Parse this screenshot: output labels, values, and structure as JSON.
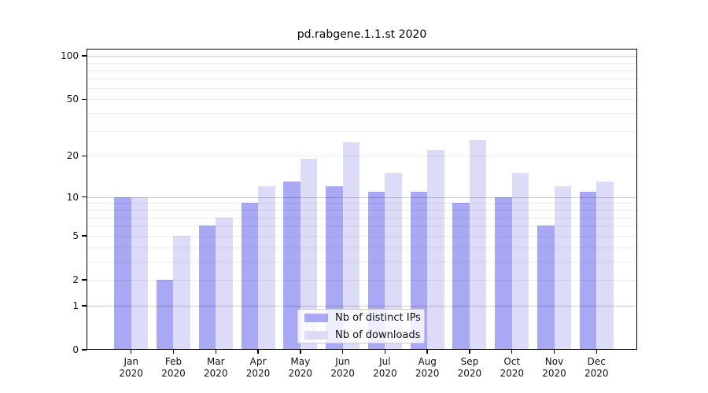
{
  "chart_data": {
    "type": "bar",
    "title": "pd.rabgene.1.1.st 2020",
    "scale": "log1p",
    "grid": true,
    "legend_position": "lower-center",
    "xlabel": "",
    "ylabel": "",
    "ylim": [
      0,
      112
    ],
    "y_ticks": [
      0,
      1,
      2,
      5,
      10,
      20,
      50,
      100
    ],
    "minor_gridlines": [
      2,
      3,
      4,
      5,
      6,
      7,
      8,
      9,
      20,
      30,
      40,
      50,
      60,
      70,
      80,
      90
    ],
    "major_gridlines": [
      1,
      10,
      100
    ],
    "categories": [
      "Jan 2020",
      "Feb 2020",
      "Mar 2020",
      "Apr 2020",
      "May 2020",
      "Jun 2020",
      "Jul 2020",
      "Aug 2020",
      "Sep 2020",
      "Oct 2020",
      "Nov 2020",
      "Dec 2020"
    ],
    "series": [
      {
        "name": "Nb of distinct IPs",
        "color": "#a8a8f5",
        "values": [
          10,
          2,
          6,
          9,
          13,
          12,
          11,
          11,
          9,
          10,
          6,
          11
        ]
      },
      {
        "name": "Nb of downloads",
        "color": "#dcdcf8",
        "values": [
          10,
          5,
          7,
          12,
          19,
          25,
          15,
          22,
          26,
          15,
          12,
          13
        ]
      }
    ],
    "colors": {
      "axis": "#000000",
      "text": "#111111",
      "background": "#ffffff"
    }
  }
}
